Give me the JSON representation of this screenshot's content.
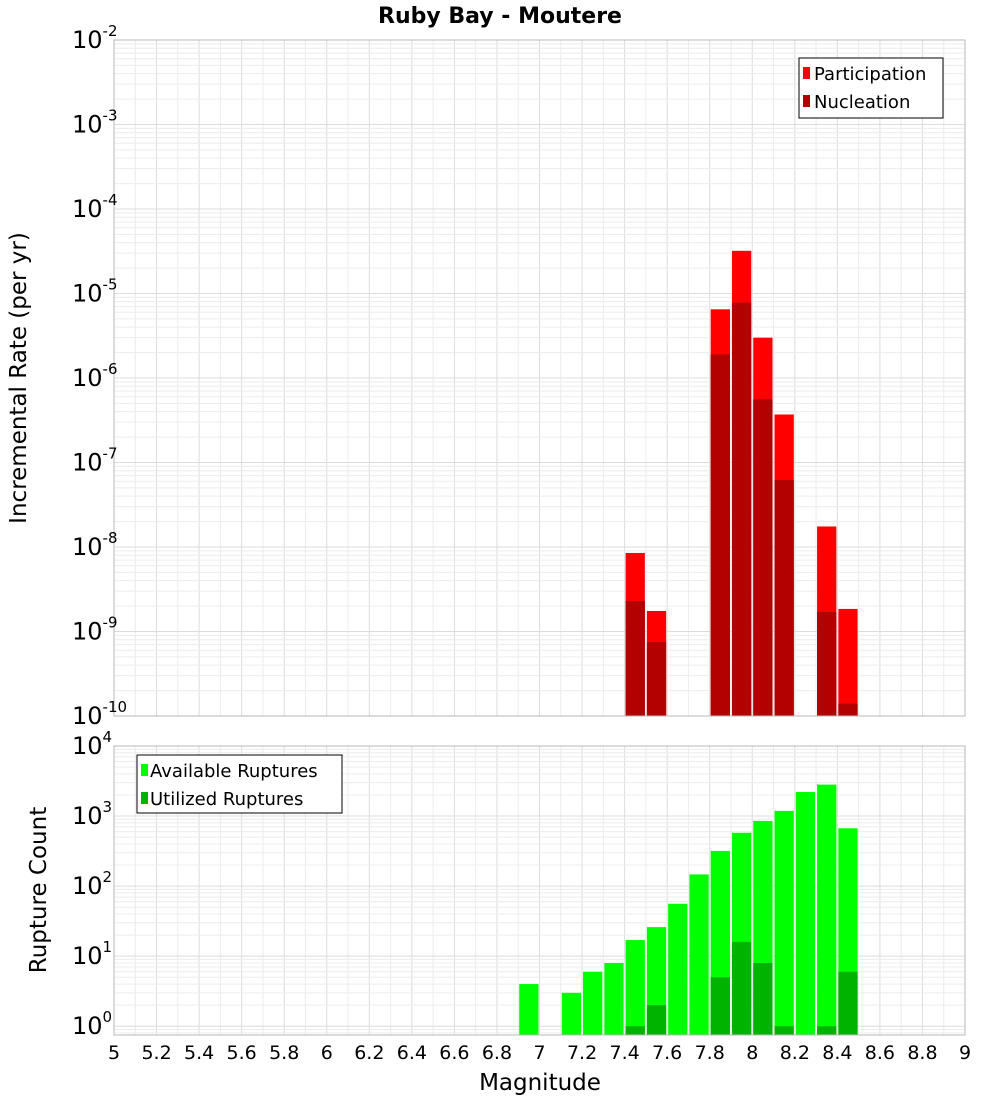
{
  "chart_data": [
    {
      "type": "bar",
      "title": "Ruby Bay - Moutere",
      "xlabel": "",
      "ylabel": "Incremental Rate (per yr)",
      "yscale": "log",
      "ylim": [
        1e-10,
        0.01
      ],
      "ytick_exponents": [
        -10,
        -9,
        -8,
        -7,
        -6,
        -5,
        -4,
        -3,
        -2
      ],
      "xlim": [
        5,
        9
      ],
      "bin_width": 0.1,
      "grid": true,
      "legend_position": "top-right",
      "series": [
        {
          "name": "Participation",
          "color": "#ff0000",
          "points": [
            {
              "x": 7.45,
              "y": 8.5e-09
            },
            {
              "x": 7.55,
              "y": 1.75e-09
            },
            {
              "x": 7.85,
              "y": 6.5e-06
            },
            {
              "x": 7.95,
              "y": 3.2e-05
            },
            {
              "x": 8.05,
              "y": 3e-06
            },
            {
              "x": 8.15,
              "y": 3.7e-07
            },
            {
              "x": 8.35,
              "y": 1.75e-08
            },
            {
              "x": 8.45,
              "y": 1.85e-09
            }
          ]
        },
        {
          "name": "Nucleation",
          "color": "#b30000",
          "points": [
            {
              "x": 7.45,
              "y": 2.3e-09
            },
            {
              "x": 7.55,
              "y": 7.5e-10
            },
            {
              "x": 7.85,
              "y": 1.9e-06
            },
            {
              "x": 7.95,
              "y": 7.8e-06
            },
            {
              "x": 8.05,
              "y": 5.6e-07
            },
            {
              "x": 8.15,
              "y": 6.2e-08
            },
            {
              "x": 8.35,
              "y": 1.7e-09
            },
            {
              "x": 8.45,
              "y": 1.4e-10
            }
          ]
        }
      ]
    },
    {
      "type": "bar",
      "xlabel": "Magnitude",
      "ylabel": "Rupture Count",
      "yscale": "log",
      "ylim": [
        0.75,
        10000
      ],
      "ytick_exponents": [
        0,
        1,
        2,
        3,
        4
      ],
      "xlim": [
        5,
        9
      ],
      "xticks": [
        "5",
        "5.2",
        "5.4",
        "5.6",
        "5.8",
        "6",
        "6.2",
        "6.4",
        "6.6",
        "6.8",
        "7",
        "7.2",
        "7.4",
        "7.6",
        "7.8",
        "8",
        "8.2",
        "8.4",
        "8.6",
        "8.8",
        "9"
      ],
      "bin_width": 0.1,
      "grid": true,
      "legend_position": "top-left",
      "series": [
        {
          "name": "Available Ruptures",
          "color": "#00ff00",
          "points": [
            {
              "x": 6.95,
              "y": 4
            },
            {
              "x": 7.15,
              "y": 3
            },
            {
              "x": 7.25,
              "y": 6
            },
            {
              "x": 7.35,
              "y": 8
            },
            {
              "x": 7.45,
              "y": 17
            },
            {
              "x": 7.55,
              "y": 26
            },
            {
              "x": 7.65,
              "y": 56
            },
            {
              "x": 7.75,
              "y": 147
            },
            {
              "x": 7.85,
              "y": 318
            },
            {
              "x": 7.95,
              "y": 577
            },
            {
              "x": 8.05,
              "y": 852
            },
            {
              "x": 8.15,
              "y": 1186
            },
            {
              "x": 8.25,
              "y": 2203
            },
            {
              "x": 8.35,
              "y": 2810
            },
            {
              "x": 8.45,
              "y": 669
            }
          ]
        },
        {
          "name": "Utilized Ruptures",
          "color": "#00b300",
          "points": [
            {
              "x": 7.45,
              "y": 1
            },
            {
              "x": 7.55,
              "y": 2
            },
            {
              "x": 7.85,
              "y": 5
            },
            {
              "x": 7.95,
              "y": 16
            },
            {
              "x": 8.05,
              "y": 8
            },
            {
              "x": 8.15,
              "y": 1
            },
            {
              "x": 8.35,
              "y": 1
            },
            {
              "x": 8.45,
              "y": 6
            }
          ]
        }
      ]
    }
  ]
}
